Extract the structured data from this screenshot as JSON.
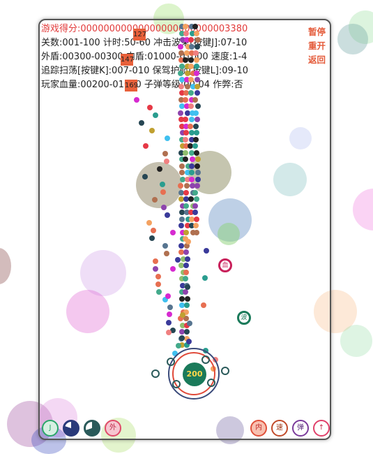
{
  "hud": {
    "score": "游戏得分:00000000000000000000000003380",
    "line2": "关数:001-100 计时:50-60 冲击波束[按键J]:07-10",
    "line3": "外盾:00300-00300 内盾:01000-01000 速度:1-4",
    "line4": "追踪扫荡[按键K]:007-010 保驾护航[按键L]:09-10",
    "line5": "玩家血量:00200-01000 子弹等级:00-04 作弊:否"
  },
  "controls": {
    "pause": "暂停",
    "restart": "重开",
    "back": "返回"
  },
  "enemies": [
    {
      "hp": "127"
    },
    {
      "hp": "147"
    },
    {
      "hp": "169"
    }
  ],
  "player": {
    "hp": "200"
  },
  "powerups": [
    {
      "label": "血",
      "color": "#c8205a"
    },
    {
      "label": "波",
      "color": "#1a7a5a"
    }
  ],
  "skills_left": [
    {
      "label": "J",
      "color": "#2aa66a"
    },
    {
      "label": "",
      "color": "#2a3a7a"
    },
    {
      "label": "",
      "color": "#2a5a5a"
    },
    {
      "label": "外",
      "color": "#e04a6a"
    }
  ],
  "skills_right": [
    {
      "label": "内",
      "color": "#e0503a"
    },
    {
      "label": "速",
      "color": "#c04a2a"
    },
    {
      "label": "弹",
      "color": "#7a3a9a"
    },
    {
      "label": "↑",
      "color": "#e0406a"
    }
  ]
}
